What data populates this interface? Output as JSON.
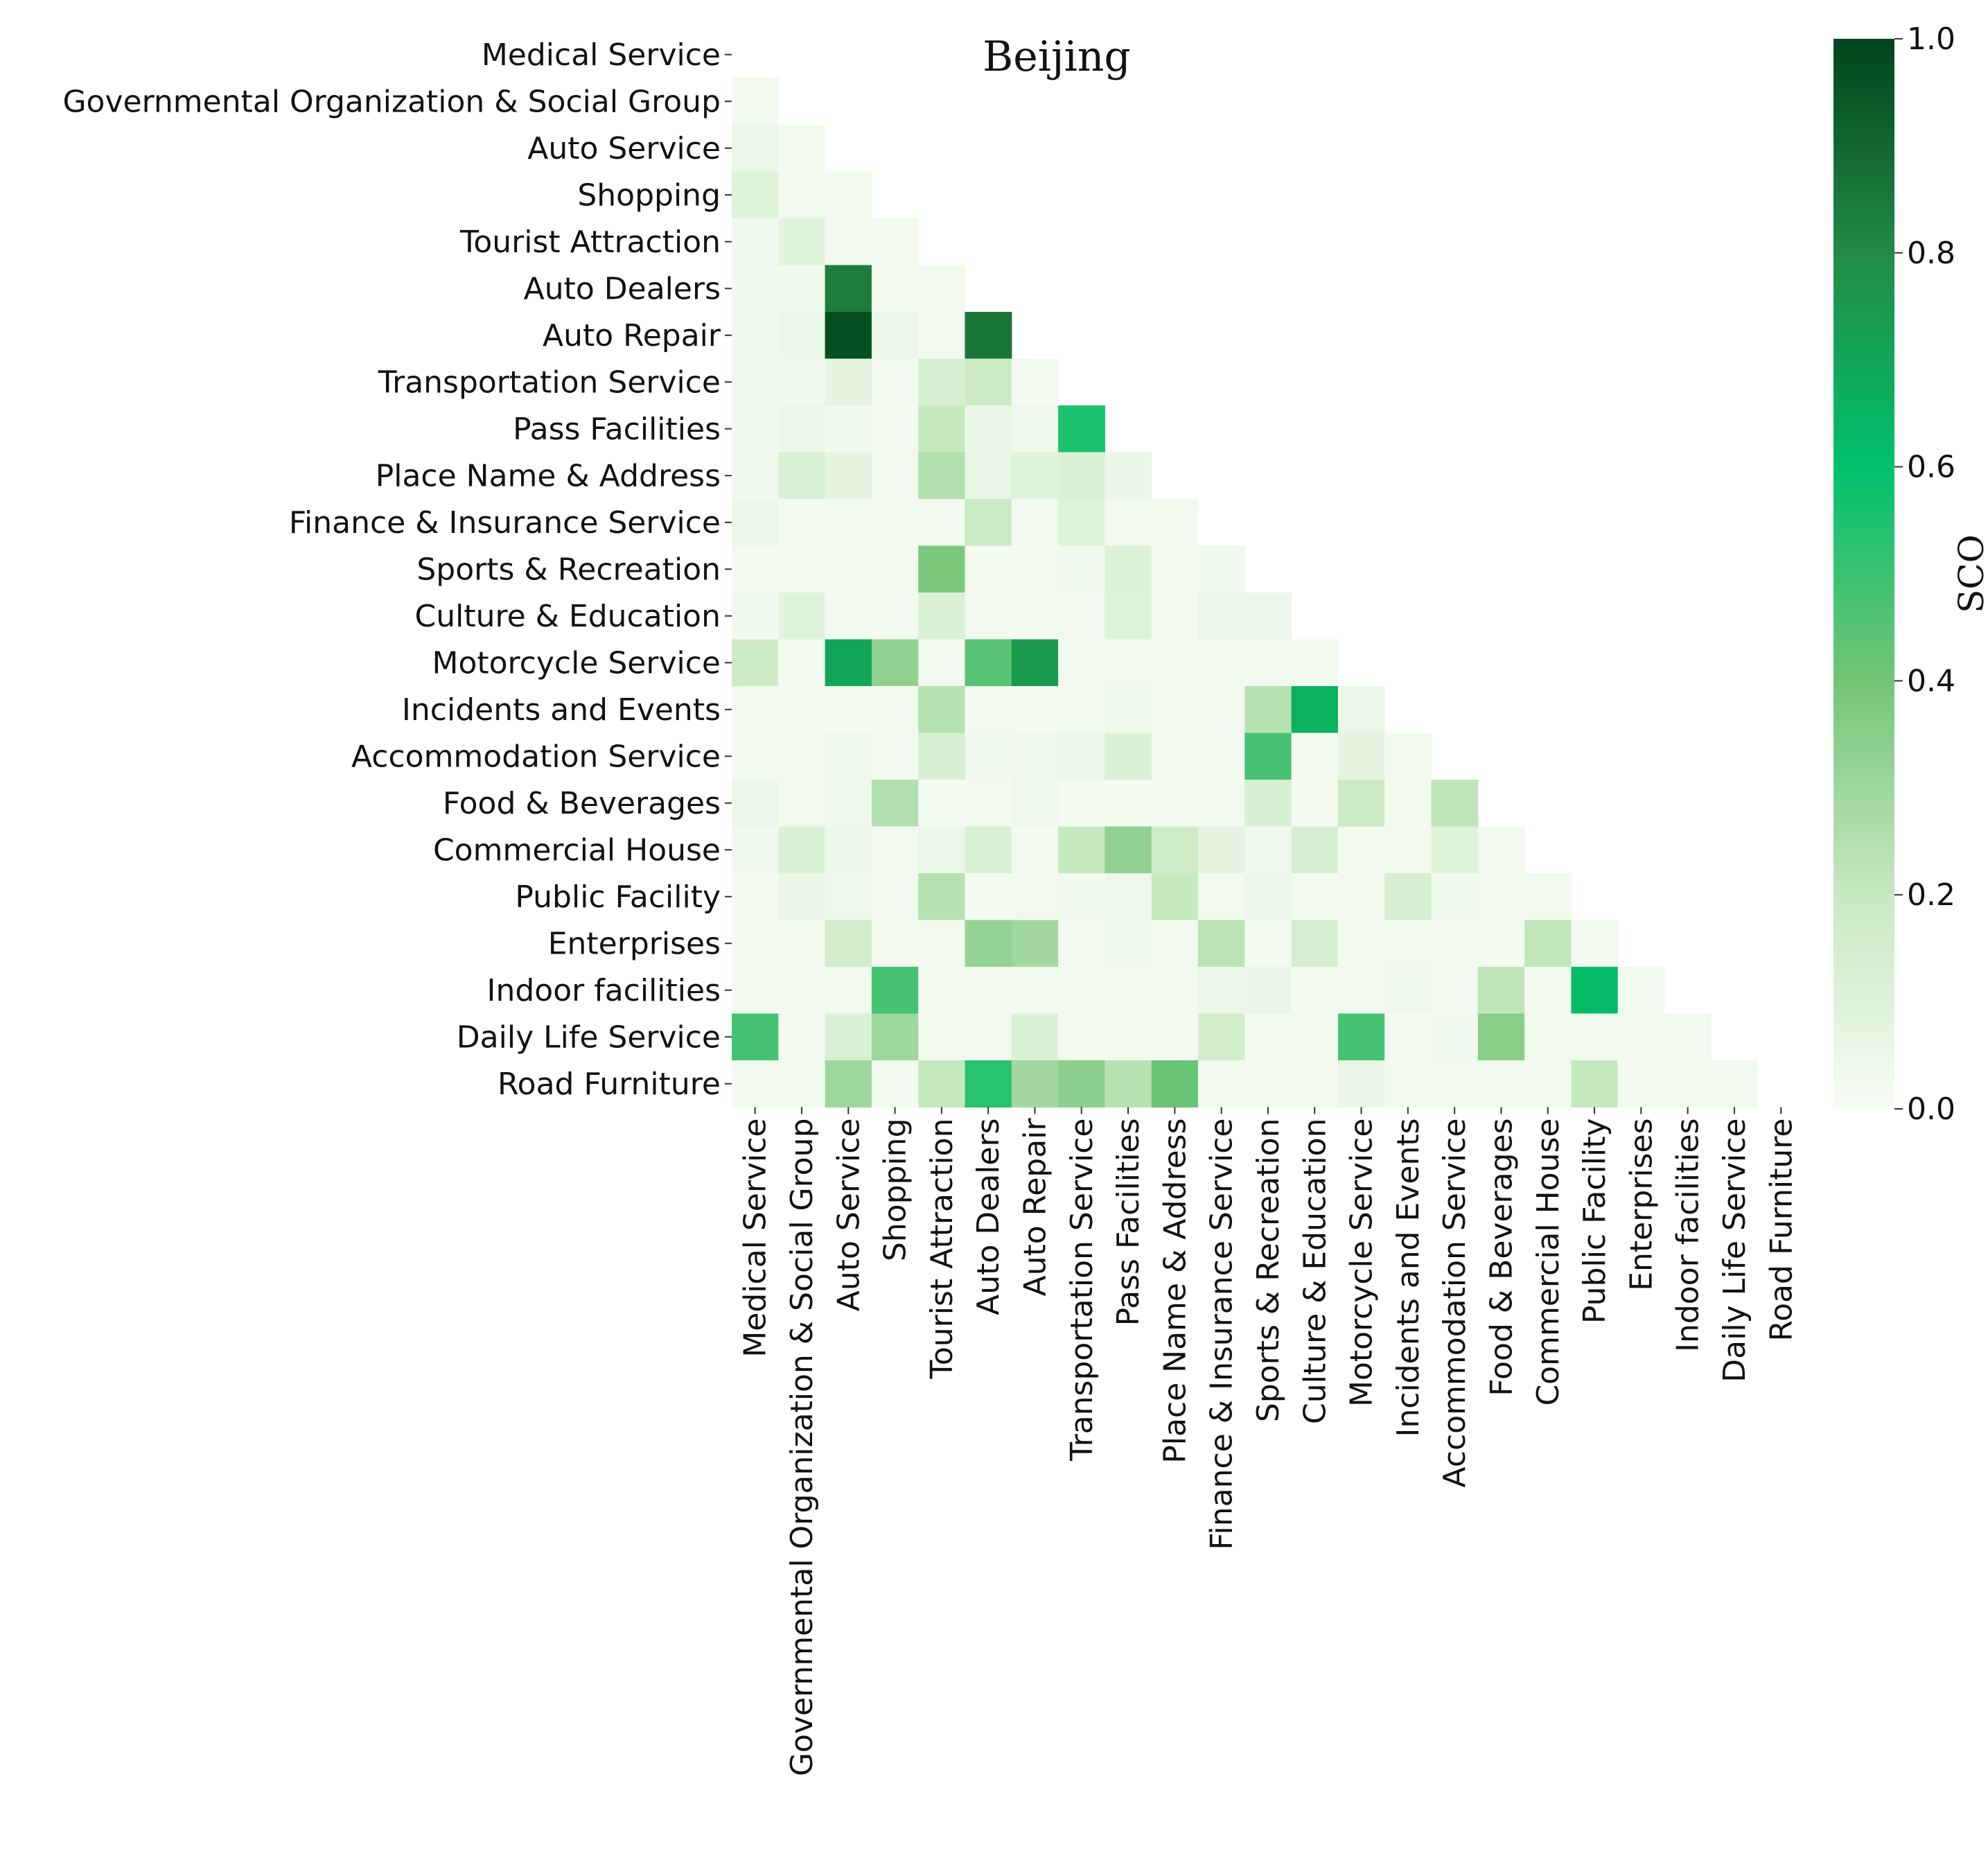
{
  "chart_data": {
    "type": "heatmap",
    "title": "Beijing",
    "colorbar_label": "SCO",
    "colormap": "Greens",
    "vmin": 0.0,
    "vmax": 1.0,
    "colorbar_ticks": [
      "0.0",
      "0.2",
      "0.4",
      "0.6",
      "0.8",
      "1.0"
    ],
    "colorbar_tick_values": [
      0.0,
      0.2,
      0.4,
      0.6,
      0.8,
      1.0
    ],
    "mask": "lower-triangle (upper triangle and diagonal hidden)",
    "categories": [
      "Medical Service",
      "Governmental Organization & Social Group",
      "Auto Service",
      "Shopping",
      "Tourist Attraction",
      "Auto Dealers",
      "Auto Repair",
      "Transportation Service",
      "Pass Facilities",
      "Place Name & Address",
      "Finance & Insurance Service",
      "Sports & Recreation",
      "Culture & Education",
      "Motorcycle Service",
      "Incidents and Events",
      "Accommodation Service",
      "Food & Beverages",
      "Commercial House",
      "Public Facility",
      "Enterprises",
      "Indoor facilities",
      "Daily Life Service",
      "Road Furniture"
    ],
    "values": [
      [],
      [
        0.02
      ],
      [
        0.05,
        0.02
      ],
      [
        0.1,
        0.02,
        0.02
      ],
      [
        0.03,
        0.09,
        0.02,
        0.02
      ],
      [
        0.03,
        0.03,
        0.84,
        0.02,
        0.02
      ],
      [
        0.03,
        0.05,
        0.97,
        0.05,
        0.02,
        0.86
      ],
      [
        0.03,
        0.03,
        0.08,
        0.02,
        0.14,
        0.18,
        0.02
      ],
      [
        0.03,
        0.05,
        0.03,
        0.02,
        0.2,
        0.06,
        0.04,
        0.55
      ],
      [
        0.03,
        0.13,
        0.08,
        0.02,
        0.25,
        0.06,
        0.1,
        0.12,
        0.06
      ],
      [
        0.05,
        0.02,
        0.02,
        0.02,
        0.02,
        0.18,
        0.02,
        0.1,
        0.02,
        0.02
      ],
      [
        0.02,
        0.02,
        0.02,
        0.02,
        0.38,
        0.02,
        0.02,
        0.03,
        0.11,
        0.02,
        0.03
      ],
      [
        0.03,
        0.09,
        0.02,
        0.02,
        0.12,
        0.02,
        0.02,
        0.02,
        0.1,
        0.02,
        0.05,
        0.05
      ],
      [
        0.18,
        0.02,
        0.7,
        0.33,
        0.02,
        0.45,
        0.75,
        0.02,
        0.02,
        0.02,
        0.02,
        0.02,
        0.02
      ],
      [
        0.02,
        0.02,
        0.02,
        0.02,
        0.24,
        0.02,
        0.02,
        0.02,
        0.04,
        0.02,
        0.02,
        0.24,
        0.66,
        0.05
      ],
      [
        0.02,
        0.02,
        0.04,
        0.02,
        0.14,
        0.03,
        0.04,
        0.05,
        0.13,
        0.02,
        0.02,
        0.48,
        0.02,
        0.07,
        0.02
      ],
      [
        0.05,
        0.02,
        0.04,
        0.25,
        0.02,
        0.02,
        0.04,
        0.02,
        0.02,
        0.02,
        0.02,
        0.14,
        0.02,
        0.18,
        0.02,
        0.22
      ],
      [
        0.03,
        0.12,
        0.05,
        0.02,
        0.05,
        0.13,
        0.02,
        0.2,
        0.33,
        0.17,
        0.08,
        0.03,
        0.14,
        0.02,
        0.02,
        0.1,
        0.02
      ],
      [
        0.02,
        0.06,
        0.04,
        0.02,
        0.24,
        0.02,
        0.02,
        0.03,
        0.04,
        0.2,
        0.02,
        0.05,
        0.02,
        0.02,
        0.14,
        0.03,
        0.02,
        0.02
      ],
      [
        0.02,
        0.02,
        0.16,
        0.02,
        0.02,
        0.32,
        0.29,
        0.02,
        0.03,
        0.02,
        0.23,
        0.02,
        0.14,
        0.02,
        0.02,
        0.02,
        0.02,
        0.21,
        0.02
      ],
      [
        0.02,
        0.02,
        0.02,
        0.48,
        0.02,
        0.02,
        0.02,
        0.02,
        0.02,
        0.02,
        0.05,
        0.06,
        0.02,
        0.02,
        0.04,
        0.02,
        0.22,
        0.02,
        0.62,
        0.02
      ],
      [
        0.48,
        0.02,
        0.13,
        0.3,
        0.02,
        0.02,
        0.13,
        0.02,
        0.02,
        0.02,
        0.16,
        0.02,
        0.02,
        0.48,
        0.02,
        0.03,
        0.35,
        0.02,
        0.02,
        0.02,
        0.02
      ],
      [
        0.02,
        0.02,
        0.3,
        0.02,
        0.2,
        0.53,
        0.29,
        0.34,
        0.24,
        0.42,
        0.02,
        0.02,
        0.02,
        0.06,
        0.02,
        0.02,
        0.02,
        0.02,
        0.2,
        0.02,
        0.02,
        0.02
      ]
    ]
  }
}
